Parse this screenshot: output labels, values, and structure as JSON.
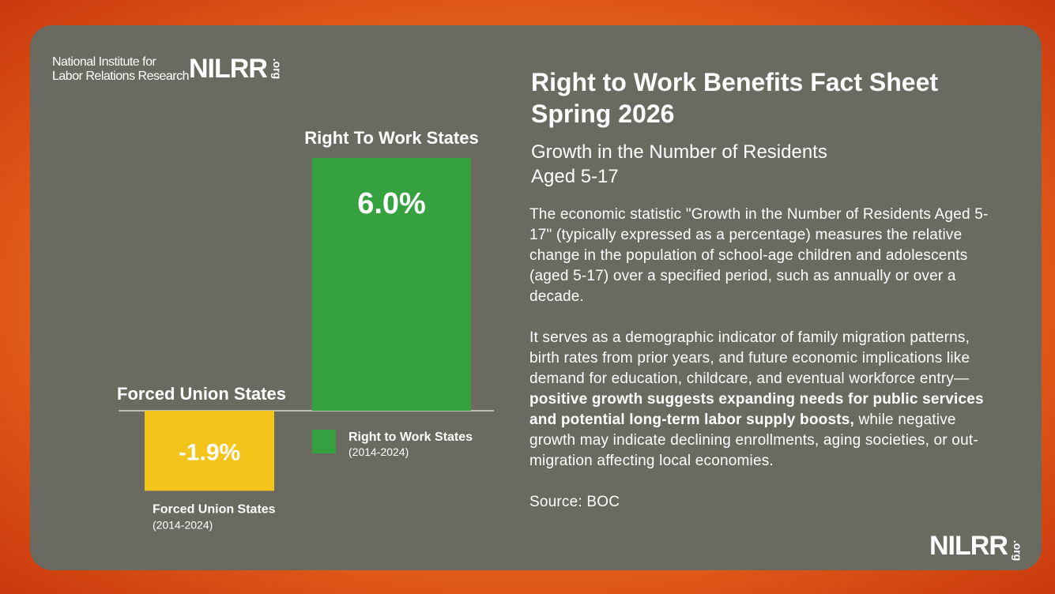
{
  "logo": {
    "line1": "National Institute for",
    "line2": "Labor Relations Research",
    "mark": "NILRR",
    "suffix": ".org"
  },
  "title": [
    "Right to Work Benefits Fact Sheet",
    "Spring 2026"
  ],
  "subtitle": [
    "Growth in the Number of Residents",
    "Aged 5-17"
  ],
  "paragraph1": "The economic statistic \"Growth in the Number of Residents Aged 5-17\" (typically expressed as a percentage) measures the relative change in the population of school-age children and adolescents (aged 5-17) over a specified period, such as annually or over a decade.",
  "paragraph2": [
    "It serves as a demographic indicator of family migration patterns, birth rates from prior years, and future economic implications like demand for education, childcare, and eventual workforce entry—",
    "positive growth suggests expanding needs for public services and potential long-term labor supply boosts,",
    " while negative growth may indicate declining enrollments, aging societies, or out-migration affecting local economies."
  ],
  "source": "Source: BOC",
  "footer_logo": {
    "mark": "NILRR",
    "suffix": ".org"
  },
  "chart_data": {
    "type": "bar",
    "categories": [
      "Forced Union States",
      "Right To Work States"
    ],
    "values": [
      -1.9,
      6.0
    ],
    "value_labels": [
      "-1.9%",
      "6.0%"
    ],
    "colors": [
      "#f3c51b",
      "#35a23f"
    ],
    "legend": [
      {
        "name": "Forced Union States",
        "period": "(2014-2024)"
      },
      {
        "name": "Right to Work States",
        "period": "(2014-2024)"
      }
    ]
  }
}
